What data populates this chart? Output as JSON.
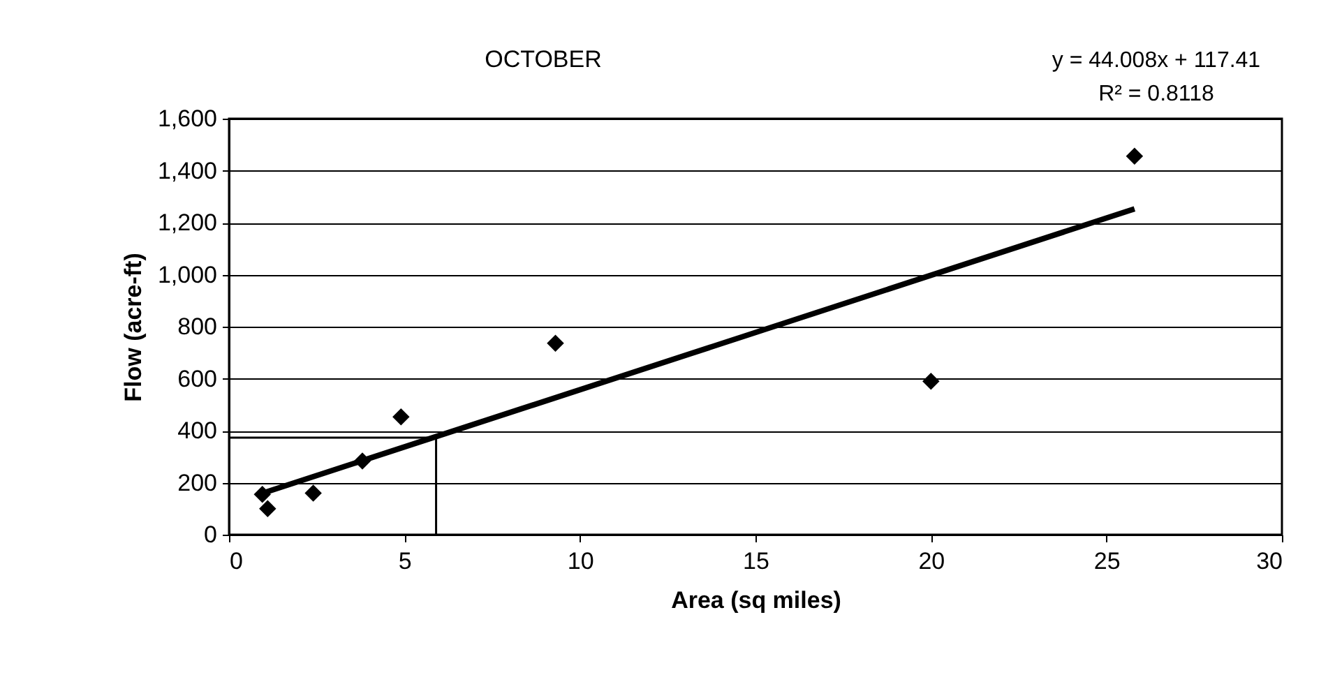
{
  "chart_data": {
    "type": "scatter",
    "title": "OCTOBER",
    "xlabel": "Area (sq miles)",
    "ylabel": "Flow (acre-ft)",
    "annotations": [
      "y = 44.008x + 117.41",
      "R² = 0.8118"
    ],
    "series": [
      {
        "color": "#000000",
        "x": [
          0.95,
          1.1,
          2.4,
          3.8,
          4.9,
          9.3,
          20.0,
          25.8
        ],
        "values": [
          155,
          100,
          160,
          283,
          453,
          736,
          590,
          1456
        ]
      },
      {
        "type": "line",
        "color": "#000000",
        "marker": "none",
        "x": [
          0.9,
          25.8
        ],
        "values": [
          157,
          1253
        ]
      },
      {
        "type": "line",
        "color": "#000000",
        "marker": "none",
        "x": [
          0,
          5.9,
          5.9
        ],
        "values": [
          373,
          373,
          0
        ]
      }
    ],
    "xlim": [
      0,
      30
    ],
    "xticks": [
      0,
      5,
      10,
      15,
      20,
      25,
      30
    ],
    "ylim": [
      0,
      1600
    ],
    "yticks": [
      0,
      200,
      400,
      600,
      800,
      {
        "value": 1000,
        "label": "1,000"
      },
      {
        "value": 1200,
        "label": "1,200"
      },
      {
        "value": 1400,
        "label": "1,400"
      },
      {
        "value": 1600,
        "label": "1,600"
      }
    ],
    "grid": "y",
    "marker": "diamond",
    "line_style": "solid"
  }
}
